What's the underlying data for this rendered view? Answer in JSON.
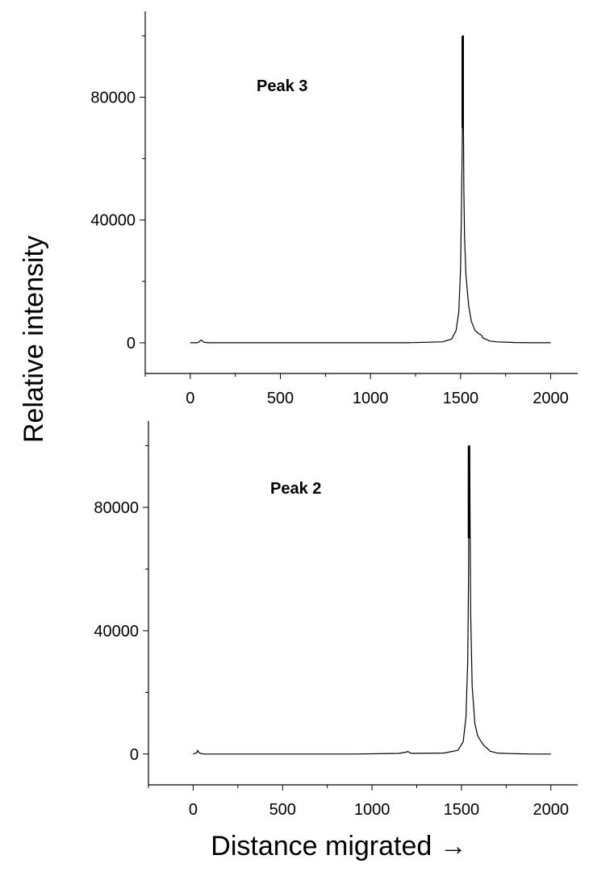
{
  "figure": {
    "ylabel": "Relative intensity",
    "xlabel": "Distance migrated →"
  },
  "chart_data": [
    {
      "type": "line",
      "annotation": "Peak 3",
      "xlim": [
        -250,
        2150
      ],
      "ylim": [
        -10000,
        108000
      ],
      "xticks": [
        0,
        500,
        1000,
        1500,
        2000
      ],
      "xtick_labels": [
        "0",
        "500",
        "1000",
        "1500",
        "2000"
      ],
      "yticks": [
        0,
        40000,
        80000
      ],
      "ytick_labels": [
        "0",
        "40000",
        "80000"
      ],
      "grid": false,
      "series": [
        {
          "x": [
            0,
            40,
            50,
            60,
            75,
            100,
            300,
            600,
            900,
            1200,
            1400,
            1450,
            1475,
            1490,
            1500,
            1505,
            1510,
            1512,
            1514,
            1515,
            1516,
            1518,
            1522,
            1530,
            1545,
            1560,
            1580,
            1600,
            1615,
            1625,
            1640,
            1660,
            1700,
            1800,
            1900,
            2000
          ],
          "y": [
            0,
            0,
            300,
            900,
            200,
            0,
            0,
            0,
            0,
            0,
            300,
            1200,
            4000,
            10000,
            24000,
            45000,
            70000,
            100000,
            100000,
            100000,
            70000,
            50000,
            35000,
            22000,
            12000,
            7000,
            4000,
            3000,
            2500,
            1500,
            1200,
            600,
            300,
            100,
            0,
            0
          ]
        }
      ]
    },
    {
      "type": "line",
      "annotation": "Peak 2",
      "xlim": [
        -250,
        2150
      ],
      "ylim": [
        -10000,
        108000
      ],
      "xticks": [
        0,
        500,
        1000,
        1500,
        2000
      ],
      "xtick_labels": [
        "0",
        "500",
        "1000",
        "1500",
        "2000"
      ],
      "yticks": [
        0,
        40000,
        80000
      ],
      "ytick_labels": [
        "0",
        "40000",
        "80000"
      ],
      "grid": false,
      "series": [
        {
          "x": [
            0,
            20,
            25,
            30,
            40,
            60,
            300,
            600,
            900,
            1150,
            1190,
            1200,
            1220,
            1400,
            1480,
            1510,
            1525,
            1535,
            1540,
            1542,
            1544,
            1546,
            1548,
            1552,
            1560,
            1575,
            1590,
            1610,
            1630,
            1645,
            1660,
            1700,
            1800,
            1900,
            2000
          ],
          "y": [
            0,
            400,
            1200,
            600,
            200,
            0,
            0,
            0,
            0,
            200,
            600,
            800,
            200,
            300,
            1200,
            4000,
            12000,
            30000,
            60000,
            100000,
            100000,
            100000,
            76000,
            45000,
            22000,
            10000,
            6000,
            4000,
            2500,
            1800,
            900,
            300,
            100,
            0,
            0
          ]
        }
      ]
    }
  ]
}
